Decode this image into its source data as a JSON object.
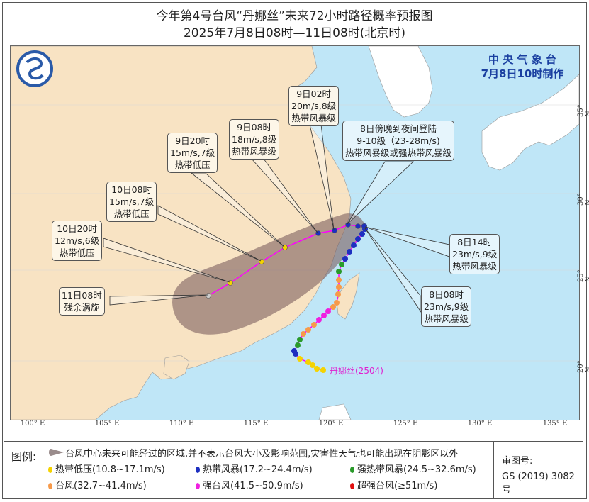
{
  "header": {
    "title": "今年第4号台风“丹娜丝”未来72小时路径概率预报图",
    "subtitle": "2025年7月8日08时—11日08时(北京时)"
  },
  "agency": {
    "name": "中 央 气 象 台",
    "issued": "7月8日10时制作"
  },
  "map": {
    "lon_labels": [
      "100° E",
      "105° E",
      "110° E",
      "115° E",
      "120° E",
      "125° E",
      "130° E",
      "135° E"
    ],
    "lat_labels": [
      "35° N",
      "30° N",
      "25° N",
      "20° N"
    ],
    "typhoon_label": "丹娜丝(2504)",
    "colors": {
      "sea": "#bfe6f7",
      "land": "#f8e3c3",
      "cone": "#7d5f5f",
      "track": "#ff00ff"
    },
    "annotations": [
      {
        "lines": [
          "11日08时",
          "残余涡旋"
        ]
      },
      {
        "lines": [
          "10日20时",
          "12m/s,6级",
          "热带低压"
        ]
      },
      {
        "lines": [
          "10日08时",
          "15m/s,7级",
          "热带低压"
        ]
      },
      {
        "lines": [
          "9日20时",
          "15m/s,7级",
          "热带低压"
        ]
      },
      {
        "lines": [
          "9日08时",
          "18m/s,8级",
          "热带风暴级"
        ]
      },
      {
        "lines": [
          "9日02时",
          "20m/s,8级",
          "热带风暴级"
        ]
      },
      {
        "lines": [
          "8日傍晚到夜间登陆",
          "9-10级（23-28m/s)",
          "热带风暴级或强热带风暴级"
        ]
      },
      {
        "lines": [
          "8日14时",
          "23m/s,9级",
          "热带风暴级"
        ]
      },
      {
        "lines": [
          "8日08时",
          "23m/s,9级",
          "热带风暴级"
        ]
      }
    ]
  },
  "legend": {
    "title": "图例:",
    "cone_text": "台风中心未来可能经过的区域,并不表示台风大小及影响范围,灾害性天气也可能出现在阴影区以外",
    "items": [
      {
        "label": "热带低压(10.8~17.1m/s)",
        "color": "#f5d300"
      },
      {
        "label": "热带风暴(17.2~24.4m/s)",
        "color": "#1d2fc0"
      },
      {
        "label": "强热带风暴(24.5~32.6m/s)",
        "color": "#2a9a2a"
      },
      {
        "label": "台风(32.7~41.4m/s)",
        "color": "#f79a4a"
      },
      {
        "label": "强台风(41.5~50.9m/s)",
        "color": "#f020e0"
      },
      {
        "label": "超强台风(≥51m/s)",
        "color": "#e01010"
      }
    ],
    "approval_label": "审图号:",
    "approval_number": "GS (2019) 3082号"
  }
}
